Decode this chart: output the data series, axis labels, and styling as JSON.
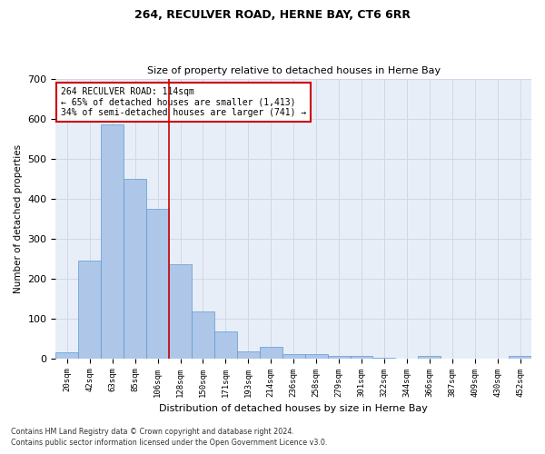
{
  "title": "264, RECULVER ROAD, HERNE BAY, CT6 6RR",
  "subtitle": "Size of property relative to detached houses in Herne Bay",
  "xlabel": "Distribution of detached houses by size in Herne Bay",
  "ylabel": "Number of detached properties",
  "bar_labels": [
    "20sqm",
    "42sqm",
    "63sqm",
    "85sqm",
    "106sqm",
    "128sqm",
    "150sqm",
    "171sqm",
    "193sqm",
    "214sqm",
    "236sqm",
    "258sqm",
    "279sqm",
    "301sqm",
    "322sqm",
    "344sqm",
    "366sqm",
    "387sqm",
    "409sqm",
    "430sqm",
    "452sqm"
  ],
  "bar_values": [
    15,
    245,
    585,
    448,
    375,
    235,
    118,
    68,
    17,
    28,
    11,
    11,
    5,
    7,
    1,
    0,
    5,
    0,
    0,
    0,
    5
  ],
  "bar_color": "#aec6e8",
  "bar_edge_color": "#5b9bd5",
  "vline_x": 4.5,
  "vline_color": "#cc0000",
  "annotation_text": "264 RECULVER ROAD: 114sqm\n← 65% of detached houses are smaller (1,413)\n34% of semi-detached houses are larger (741) →",
  "annotation_box_color": "#cc0000",
  "ylim": [
    0,
    700
  ],
  "yticks": [
    0,
    100,
    200,
    300,
    400,
    500,
    600,
    700
  ],
  "grid_color": "#d0d8e8",
  "background_color": "#e8eef8",
  "footer_line1": "Contains HM Land Registry data © Crown copyright and database right 2024.",
  "footer_line2": "Contains public sector information licensed under the Open Government Licence v3.0."
}
